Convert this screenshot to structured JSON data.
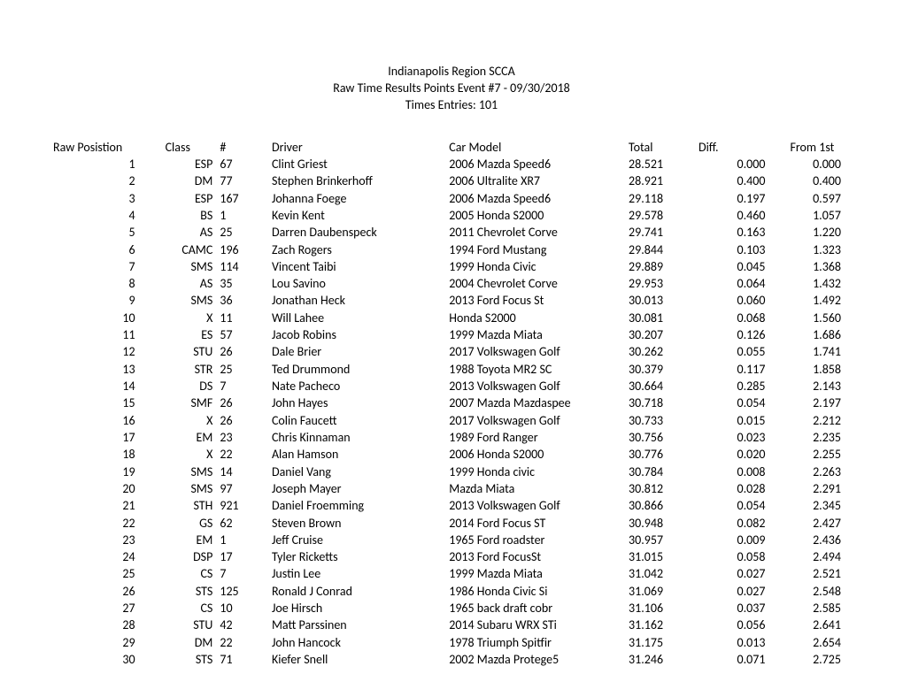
{
  "header": {
    "title": "Indianapolis Region SCCA",
    "subtitle": "Raw Time Results Points Event #7 - 09/30/2018",
    "entries": "Times Entries:  101"
  },
  "columns": {
    "position": "Raw Posistion",
    "class": "Class",
    "number": "#",
    "driver": "Driver",
    "car": "Car Model",
    "total": "Total",
    "diff": "Diff.",
    "from1st": "From 1st"
  },
  "rows": [
    {
      "pos": "1",
      "class": "ESP",
      "num": "67",
      "driver": "Clint Griest",
      "car": "2006 Mazda Speed6",
      "total": "28.521",
      "diff": "0.000",
      "from1st": "0.000"
    },
    {
      "pos": "2",
      "class": "DM",
      "num": "77",
      "driver": "Stephen Brinkerhoff",
      "car": "2006 Ultralite XR7",
      "total": "28.921",
      "diff": "0.400",
      "from1st": "0.400"
    },
    {
      "pos": "3",
      "class": "ESP",
      "num": "167",
      "driver": "Johanna Foege",
      "car": "2006 Mazda Speed6",
      "total": "29.118",
      "diff": "0.197",
      "from1st": "0.597"
    },
    {
      "pos": "4",
      "class": "BS",
      "num": "1",
      "driver": "Kevin Kent",
      "car": "2005 Honda S2000",
      "total": "29.578",
      "diff": "0.460",
      "from1st": "1.057"
    },
    {
      "pos": "5",
      "class": "AS",
      "num": "25",
      "driver": "Darren Daubenspeck",
      "car": "2011 Chevrolet Corve",
      "total": "29.741",
      "diff": "0.163",
      "from1st": "1.220"
    },
    {
      "pos": "6",
      "class": "CAMC",
      "num": "196",
      "driver": "Zach Rogers",
      "car": "1994 Ford Mustang",
      "total": "29.844",
      "diff": "0.103",
      "from1st": "1.323"
    },
    {
      "pos": "7",
      "class": "SMS",
      "num": "114",
      "driver": "Vincent Taibi",
      "car": "1999 Honda Civic",
      "total": "29.889",
      "diff": "0.045",
      "from1st": "1.368"
    },
    {
      "pos": "8",
      "class": "AS",
      "num": "35",
      "driver": "Lou Savino",
      "car": "2004 Chevrolet Corve",
      "total": "29.953",
      "diff": "0.064",
      "from1st": "1.432"
    },
    {
      "pos": "9",
      "class": "SMS",
      "num": "36",
      "driver": "Jonathan Heck",
      "car": "2013 Ford Focus St",
      "total": "30.013",
      "diff": "0.060",
      "from1st": "1.492"
    },
    {
      "pos": "10",
      "class": "X",
      "num": "11",
      "driver": "Will Lahee",
      "car": "Honda S2000",
      "total": "30.081",
      "diff": "0.068",
      "from1st": "1.560"
    },
    {
      "pos": "11",
      "class": "ES",
      "num": "57",
      "driver": "Jacob Robins",
      "car": "1999 Mazda Miata",
      "total": "30.207",
      "diff": "0.126",
      "from1st": "1.686"
    },
    {
      "pos": "12",
      "class": "STU",
      "num": "26",
      "driver": "Dale Brier",
      "car": "2017 Volkswagen Golf",
      "total": "30.262",
      "diff": "0.055",
      "from1st": "1.741"
    },
    {
      "pos": "13",
      "class": "STR",
      "num": "25",
      "driver": "Ted Drummond",
      "car": "1988 Toyota MR2 SC",
      "total": "30.379",
      "diff": "0.117",
      "from1st": "1.858"
    },
    {
      "pos": "14",
      "class": "DS",
      "num": "7",
      "driver": "Nate Pacheco",
      "car": "2013 Volkswagen Golf",
      "total": "30.664",
      "diff": "0.285",
      "from1st": "2.143"
    },
    {
      "pos": "15",
      "class": "SMF",
      "num": "26",
      "driver": "John Hayes",
      "car": "2007 Mazda Mazdaspee",
      "total": "30.718",
      "diff": "0.054",
      "from1st": "2.197"
    },
    {
      "pos": "16",
      "class": "X",
      "num": "26",
      "driver": "Colin Faucett",
      "car": "2017 Volkswagen Golf",
      "total": "30.733",
      "diff": "0.015",
      "from1st": "2.212"
    },
    {
      "pos": "17",
      "class": "EM",
      "num": "23",
      "driver": "Chris Kinnaman",
      "car": "1989 Ford Ranger",
      "total": "30.756",
      "diff": "0.023",
      "from1st": "2.235"
    },
    {
      "pos": "18",
      "class": "X",
      "num": "22",
      "driver": "Alan Hamson",
      "car": "2006 Honda S2000",
      "total": "30.776",
      "diff": "0.020",
      "from1st": "2.255"
    },
    {
      "pos": "19",
      "class": "SMS",
      "num": "14",
      "driver": "Daniel Vang",
      "car": "1999 Honda civic",
      "total": "30.784",
      "diff": "0.008",
      "from1st": "2.263"
    },
    {
      "pos": "20",
      "class": "SMS",
      "num": "97",
      "driver": "Joseph Mayer",
      "car": "Mazda Miata",
      "total": "30.812",
      "diff": "0.028",
      "from1st": "2.291"
    },
    {
      "pos": "21",
      "class": "STH",
      "num": "921",
      "driver": "Daniel Froemming",
      "car": "2013 Volkswagen Golf",
      "total": "30.866",
      "diff": "0.054",
      "from1st": "2.345"
    },
    {
      "pos": "22",
      "class": "GS",
      "num": "62",
      "driver": "Steven Brown",
      "car": "2014 Ford Focus ST",
      "total": "30.948",
      "diff": "0.082",
      "from1st": "2.427"
    },
    {
      "pos": "23",
      "class": "EM",
      "num": "1",
      "driver": "Jeff Cruise",
      "car": "1965 Ford roadster",
      "total": "30.957",
      "diff": "0.009",
      "from1st": "2.436"
    },
    {
      "pos": "24",
      "class": "DSP",
      "num": "17",
      "driver": "Tyler Ricketts",
      "car": "2013 Ford FocusSt",
      "total": "31.015",
      "diff": "0.058",
      "from1st": "2.494"
    },
    {
      "pos": "25",
      "class": "CS",
      "num": "7",
      "driver": "Justin Lee",
      "car": "1999 Mazda Miata",
      "total": "31.042",
      "diff": "0.027",
      "from1st": "2.521"
    },
    {
      "pos": "26",
      "class": "STS",
      "num": "125",
      "driver": "Ronald J Conrad",
      "car": "1986 Honda Civic Si",
      "total": "31.069",
      "diff": "0.027",
      "from1st": "2.548"
    },
    {
      "pos": "27",
      "class": "CS",
      "num": "10",
      "driver": "Joe Hirsch",
      "car": "1965 back draft cobr",
      "total": "31.106",
      "diff": "0.037",
      "from1st": "2.585"
    },
    {
      "pos": "28",
      "class": "STU",
      "num": "42",
      "driver": "Matt Parssinen",
      "car": "2014 Subaru WRX STi",
      "total": "31.162",
      "diff": "0.056",
      "from1st": "2.641"
    },
    {
      "pos": "29",
      "class": "DM",
      "num": "22",
      "driver": "John Hancock",
      "car": "1978 Triumph Spitfir",
      "total": "31.175",
      "diff": "0.013",
      "from1st": "2.654"
    },
    {
      "pos": "30",
      "class": "STS",
      "num": "71",
      "driver": "Kiefer Snell",
      "car": "2002 Mazda Protege5",
      "total": "31.246",
      "diff": "0.071",
      "from1st": "2.725"
    }
  ]
}
